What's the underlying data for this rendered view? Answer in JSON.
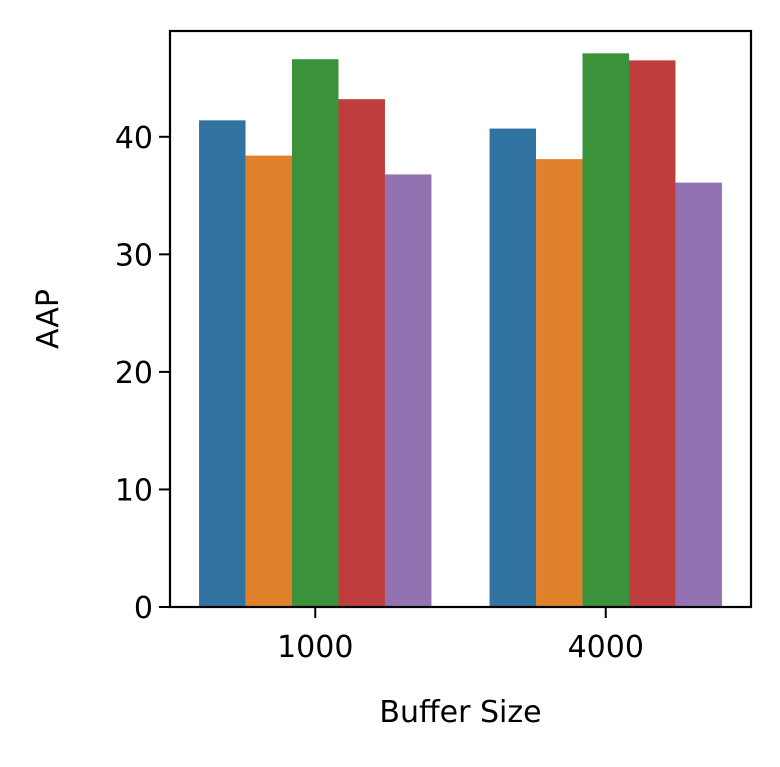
{
  "chart_data": {
    "type": "bar",
    "xlabel": "Buffer Size",
    "ylabel": "AAP",
    "categories": [
      "1000",
      "4000"
    ],
    "ylim": [
      0,
      49
    ],
    "yticks": [
      0,
      10,
      20,
      30,
      40
    ],
    "grid": false,
    "series": [
      {
        "color": "#3274a1",
        "values": [
          41.4,
          40.7
        ]
      },
      {
        "color": "#e1812c",
        "values": [
          38.4,
          38.1
        ]
      },
      {
        "color": "#3a923a",
        "values": [
          46.6,
          47.1
        ]
      },
      {
        "color": "#c03d3e",
        "values": [
          43.2,
          46.5
        ]
      },
      {
        "color": "#9372b2",
        "values": [
          36.8,
          36.1
        ]
      }
    ]
  }
}
